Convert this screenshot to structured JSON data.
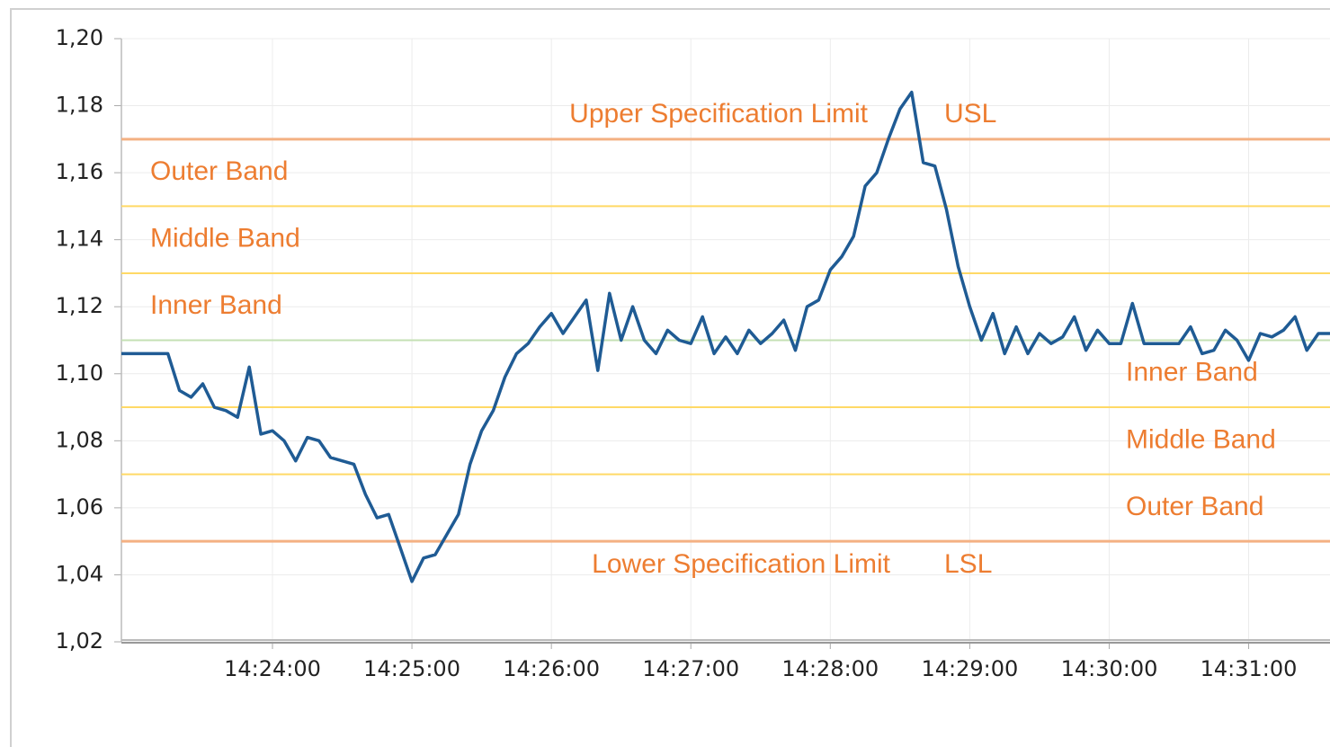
{
  "chart_data": {
    "type": "line",
    "color": "#1f5b94",
    "x": [
      "14:22:55",
      "14:23:00",
      "14:23:05",
      "14:23:10",
      "14:23:15",
      "14:23:20",
      "14:23:25",
      "14:23:30",
      "14:23:35",
      "14:23:40",
      "14:23:45",
      "14:23:50",
      "14:23:55",
      "14:24:00",
      "14:24:05",
      "14:24:10",
      "14:24:15",
      "14:24:20",
      "14:24:25",
      "14:24:30",
      "14:24:35",
      "14:24:40",
      "14:24:45",
      "14:24:50",
      "14:24:55",
      "14:25:00",
      "14:25:05",
      "14:25:10",
      "14:25:15",
      "14:25:20",
      "14:25:25",
      "14:25:30",
      "14:25:35",
      "14:25:40",
      "14:25:45",
      "14:25:50",
      "14:25:55",
      "14:26:00",
      "14:26:05",
      "14:26:10",
      "14:26:15",
      "14:26:20",
      "14:26:25",
      "14:26:30",
      "14:26:35",
      "14:26:40",
      "14:26:45",
      "14:26:50",
      "14:26:55",
      "14:27:00",
      "14:27:05",
      "14:27:10",
      "14:27:15",
      "14:27:20",
      "14:27:25",
      "14:27:30",
      "14:27:35",
      "14:27:40",
      "14:27:45",
      "14:27:50",
      "14:27:55",
      "14:28:00",
      "14:28:05",
      "14:28:10",
      "14:28:15",
      "14:28:20",
      "14:28:25",
      "14:28:30",
      "14:28:35",
      "14:28:40",
      "14:28:45",
      "14:28:50",
      "14:28:55",
      "14:29:00",
      "14:29:05",
      "14:29:10",
      "14:29:15",
      "14:29:20",
      "14:29:25",
      "14:29:30",
      "14:29:35",
      "14:29:40",
      "14:29:45",
      "14:29:50",
      "14:29:55",
      "14:30:00",
      "14:30:05",
      "14:30:10",
      "14:30:15",
      "14:30:20",
      "14:30:25",
      "14:30:30",
      "14:30:35",
      "14:30:40",
      "14:30:45",
      "14:30:50",
      "14:30:55",
      "14:31:00",
      "14:31:05",
      "14:31:10",
      "14:31:15",
      "14:31:20",
      "14:31:25",
      "14:31:30",
      "14:31:35"
    ],
    "values": [
      1.106,
      1.106,
      1.106,
      1.106,
      1.106,
      1.095,
      1.093,
      1.097,
      1.09,
      1.089,
      1.087,
      1.102,
      1.082,
      1.083,
      1.08,
      1.074,
      1.081,
      1.08,
      1.075,
      1.074,
      1.073,
      1.064,
      1.057,
      1.058,
      1.048,
      1.038,
      1.045,
      1.046,
      1.052,
      1.058,
      1.073,
      1.083,
      1.089,
      1.099,
      1.106,
      1.109,
      1.114,
      1.118,
      1.112,
      1.117,
      1.122,
      1.101,
      1.124,
      1.11,
      1.12,
      1.11,
      1.106,
      1.113,
      1.11,
      1.109,
      1.117,
      1.106,
      1.111,
      1.106,
      1.113,
      1.109,
      1.112,
      1.116,
      1.107,
      1.12,
      1.122,
      1.131,
      1.135,
      1.141,
      1.156,
      1.16,
      1.17,
      1.179,
      1.184,
      1.163,
      1.162,
      1.149,
      1.132,
      1.12,
      1.11,
      1.118,
      1.106,
      1.114,
      1.106,
      1.112,
      1.109,
      1.111,
      1.117,
      1.107,
      1.113,
      1.109,
      1.109,
      1.121,
      1.109,
      1.109,
      1.109,
      1.109,
      1.114,
      1.106,
      1.107,
      1.113,
      1.11,
      1.104,
      1.112,
      1.111,
      1.113,
      1.117,
      1.107,
      1.112,
      1.112
    ],
    "xlim": [
      "14:22:55",
      "14:31:35"
    ],
    "xticks": [
      "14:24:00",
      "14:25:00",
      "14:26:00",
      "14:27:00",
      "14:28:00",
      "14:29:00",
      "14:30:00",
      "14:31:00"
    ],
    "ylim": [
      1.02,
      1.2
    ],
    "yticks": [
      {
        "value": 1.02,
        "label": "1,02"
      },
      {
        "value": 1.04,
        "label": "1,04"
      },
      {
        "value": 1.06,
        "label": "1,06"
      },
      {
        "value": 1.08,
        "label": "1,08"
      },
      {
        "value": 1.1,
        "label": "1,10"
      },
      {
        "value": 1.12,
        "label": "1,12"
      },
      {
        "value": 1.14,
        "label": "1,14"
      },
      {
        "value": 1.16,
        "label": "1,16"
      },
      {
        "value": 1.18,
        "label": "1,18"
      },
      {
        "value": 1.2,
        "label": "1,20"
      }
    ],
    "grid": true,
    "limits": [
      {
        "label": "Upper Specification Limit",
        "abbr": "USL",
        "value": 1.17,
        "color": "#f4b183"
      },
      {
        "label": "Lower Specification Limit",
        "abbr": "LSL",
        "value": 1.05,
        "color": "#f4b183"
      }
    ],
    "band_lines": [
      {
        "value": 1.15,
        "color": "#ffd966"
      },
      {
        "value": 1.13,
        "color": "#ffd966"
      },
      {
        "value": 1.11,
        "color": "#c5e0b4"
      },
      {
        "value": 1.09,
        "color": "#ffd966"
      },
      {
        "value": 1.07,
        "color": "#ffd966"
      }
    ],
    "bands": [
      {
        "label": "Outer Band",
        "range": [
          1.15,
          1.17
        ]
      },
      {
        "label": "Middle Band",
        "range": [
          1.13,
          1.15
        ]
      },
      {
        "label": "Inner Band",
        "range": [
          1.11,
          1.13
        ]
      },
      {
        "label": "Inner Band",
        "range": [
          1.09,
          1.11
        ]
      },
      {
        "label": "Middle Band",
        "range": [
          1.07,
          1.09
        ]
      },
      {
        "label": "Outer Band",
        "range": [
          1.05,
          1.07
        ]
      }
    ]
  }
}
